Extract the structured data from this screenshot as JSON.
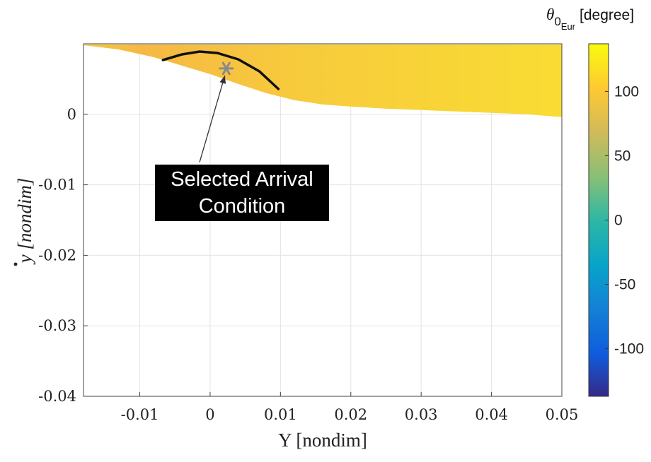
{
  "chart_data": {
    "type": "area",
    "xlabel": "Y [nondim]",
    "ylabel": "y [nondim]",
    "xlim": [
      -0.018,
      0.05
    ],
    "ylim": [
      -0.04,
      0.01
    ],
    "x_ticks": [
      "-0.01",
      "0",
      "0.01",
      "0.02",
      "0.03",
      "0.04",
      "0.05"
    ],
    "x_tick_values": [
      -0.01,
      0,
      0.01,
      0.02,
      0.03,
      0.04,
      0.05
    ],
    "y_ticks": [
      "0",
      "-0.01",
      "-0.02",
      "-0.03",
      "-0.04"
    ],
    "y_tick_values": [
      0,
      -0.01,
      -0.02,
      -0.03,
      -0.04
    ],
    "grid": true,
    "region": {
      "upper_bound_y": 0.0099,
      "lower_boundary": [
        {
          "x": -0.018,
          "y": 0.0098
        },
        {
          "x": -0.013,
          "y": 0.0092
        },
        {
          "x": -0.008,
          "y": 0.0081
        },
        {
          "x": -0.004,
          "y": 0.0069
        },
        {
          "x": 0.0,
          "y": 0.0057
        },
        {
          "x": 0.004,
          "y": 0.0043
        },
        {
          "x": 0.008,
          "y": 0.003
        },
        {
          "x": 0.012,
          "y": 0.002
        },
        {
          "x": 0.016,
          "y": 0.0014
        },
        {
          "x": 0.02,
          "y": 0.0011
        },
        {
          "x": 0.025,
          "y": 0.0008
        },
        {
          "x": 0.03,
          "y": 0.0006
        },
        {
          "x": 0.035,
          "y": 0.0004
        },
        {
          "x": 0.04,
          "y": 0.0002
        },
        {
          "x": 0.045,
          "y": 0.0
        },
        {
          "x": 0.05,
          "y": -0.0004
        }
      ],
      "color_value_range": [
        88,
        137
      ]
    },
    "curve": [
      {
        "x": -0.0067,
        "y": 0.0077
      },
      {
        "x": -0.004,
        "y": 0.0085
      },
      {
        "x": -0.0015,
        "y": 0.0089
      },
      {
        "x": 0.001,
        "y": 0.0087
      },
      {
        "x": 0.004,
        "y": 0.0078
      },
      {
        "x": 0.007,
        "y": 0.0061
      },
      {
        "x": 0.0097,
        "y": 0.0036
      }
    ],
    "selected_point": {
      "x": 0.0023,
      "y": 0.0065
    },
    "annotation": {
      "lines": [
        "Selected Arrival",
        "Condition"
      ],
      "arrow_tail": {
        "x": -0.0015,
        "y": -0.0068
      }
    },
    "colorbar": {
      "title_symbol": "θ",
      "title_sub": "0",
      "title_subsub": "Eur",
      "title_unit": "[degree]",
      "range": [
        -137,
        137
      ],
      "ticks": [
        "100",
        "50",
        "0",
        "-50",
        "-100"
      ],
      "tick_values": [
        100,
        50,
        0,
        -50,
        -100
      ],
      "colormap": "parula"
    }
  }
}
